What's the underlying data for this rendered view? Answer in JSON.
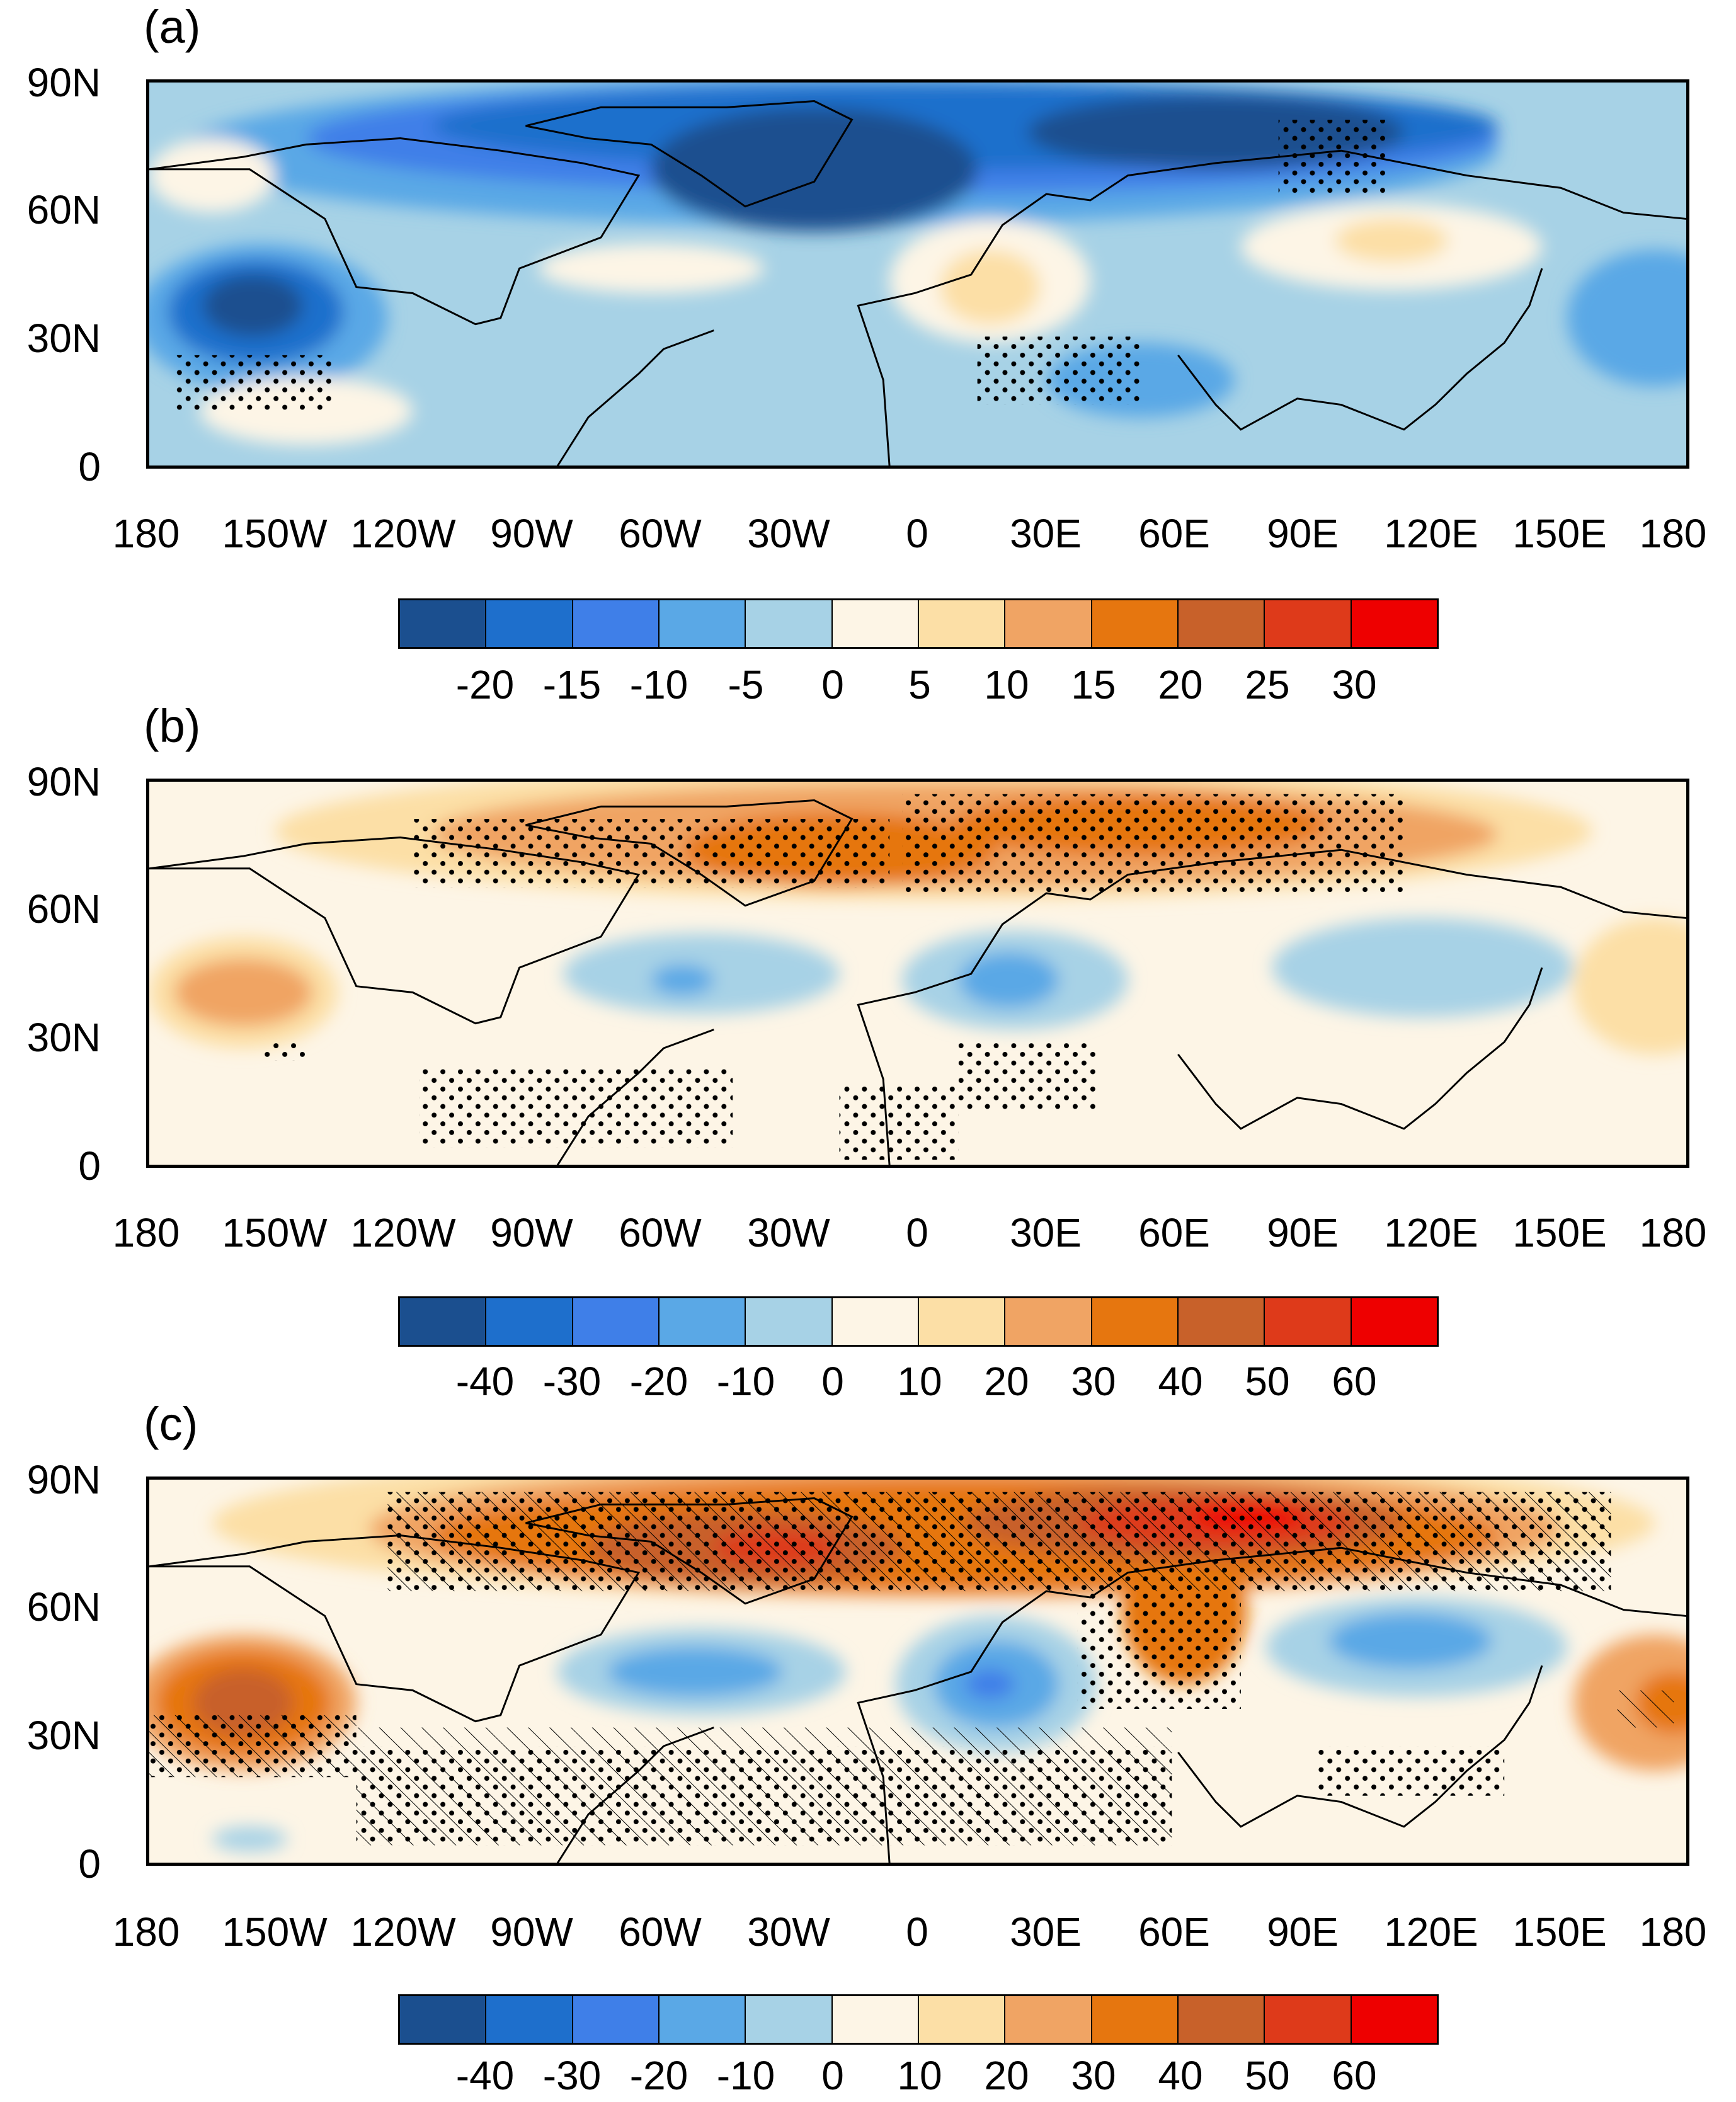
{
  "panels": [
    {
      "label": "(a)",
      "lat_labels": [
        "90N",
        "60N",
        "30N",
        "0"
      ],
      "lon_labels": [
        "180",
        "150W",
        "120W",
        "90W",
        "60W",
        "30W",
        "0",
        "30E",
        "60E",
        "90E",
        "120E",
        "150E",
        "180"
      ],
      "colorbar_labels": [
        "-20",
        "-15",
        "-10",
        "-5",
        "0",
        "5",
        "10",
        "15",
        "20",
        "25",
        "30"
      ]
    },
    {
      "label": "(b)",
      "lat_labels": [
        "90N",
        "60N",
        "30N",
        "0"
      ],
      "lon_labels": [
        "180",
        "150W",
        "120W",
        "90W",
        "60W",
        "30W",
        "0",
        "30E",
        "60E",
        "90E",
        "120E",
        "150E",
        "180"
      ],
      "colorbar_labels": [
        "-40",
        "-30",
        "-20",
        "-10",
        "0",
        "10",
        "20",
        "30",
        "40",
        "50",
        "60"
      ]
    },
    {
      "label": "(c)",
      "lat_labels": [
        "90N",
        "60N",
        "30N",
        "0"
      ],
      "lon_labels": [
        "180",
        "150W",
        "120W",
        "90W",
        "60W",
        "30W",
        "0",
        "30E",
        "60E",
        "90E",
        "120E",
        "150E",
        "180"
      ],
      "colorbar_labels": [
        "-40",
        "-30",
        "-20",
        "-10",
        "0",
        "10",
        "20",
        "30",
        "40",
        "50",
        "60"
      ]
    }
  ],
  "colorbar_colors": [
    "#1b4f8f",
    "#1e6fcc",
    "#3f7fe8",
    "#5aa8e6",
    "#a7d2e6",
    "#fdf5e6",
    "#fcdfa6",
    "#f0a464",
    "#e6760f",
    "#c8612a",
    "#de3a1a",
    "#ee0000"
  ]
}
